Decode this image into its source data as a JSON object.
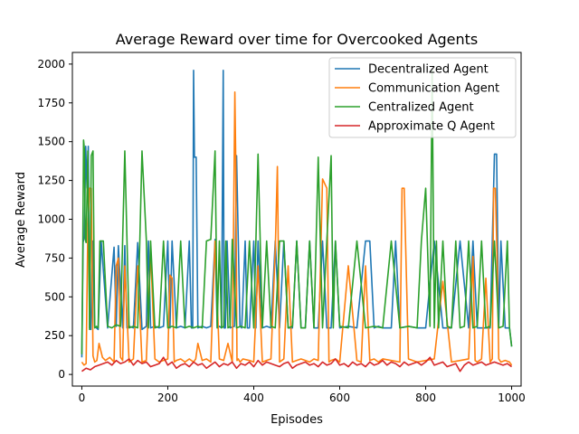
{
  "chart_data": {
    "type": "line",
    "title": "Average Reward over time for Overcooked Agents",
    "xlabel": "Episodes",
    "ylabel": "Average Reward",
    "xlim": [
      -22,
      1022
    ],
    "ylim": [
      -75,
      2075
    ],
    "xticks": [
      0,
      200,
      400,
      600,
      800,
      1000
    ],
    "xtick_labels": [
      "0",
      "200",
      "400",
      "600",
      "800",
      "1000"
    ],
    "yticks": [
      0,
      250,
      500,
      750,
      1000,
      1250,
      1500,
      1750,
      2000
    ],
    "ytick_labels": [
      "0",
      "250",
      "500",
      "750",
      "1000",
      "1250",
      "1500",
      "1750",
      "2000"
    ],
    "grid": false,
    "legend_position": "top-right",
    "series": [
      {
        "name": "Decentralized Agent",
        "color": "#1f77b4",
        "x": [
          0,
          3,
          6,
          9,
          12,
          15,
          18,
          21,
          25,
          30,
          38,
          45,
          60,
          75,
          80,
          85,
          95,
          100,
          105,
          110,
          120,
          130,
          140,
          150,
          155,
          160,
          170,
          180,
          190,
          200,
          205,
          210,
          220,
          230,
          240,
          250,
          255,
          258,
          260,
          262,
          266,
          270,
          280,
          290,
          300,
          310,
          315,
          320,
          325,
          329,
          331,
          334,
          338,
          345,
          355,
          360,
          364,
          368,
          372,
          380,
          385,
          390,
          400,
          405,
          410,
          420,
          430,
          440,
          450,
          460,
          470,
          480,
          490,
          500,
          510,
          520,
          530,
          540,
          550,
          560,
          570,
          580,
          590,
          600,
          620,
          640,
          660,
          670,
          680,
          690,
          700,
          720,
          730,
          740,
          760,
          780,
          800,
          820,
          840,
          860,
          880,
          900,
          910,
          920,
          940,
          950,
          955,
          960,
          965,
          970,
          975,
          985,
          995,
          1000
        ],
        "y": [
          110,
          850,
          900,
          1470,
          1200,
          1470,
          300,
          290,
          860,
          310,
          290,
          860,
          300,
          820,
          310,
          830,
          300,
          830,
          300,
          310,
          300,
          850,
          290,
          310,
          860,
          300,
          310,
          300,
          310,
          860,
          300,
          860,
          300,
          310,
          300,
          860,
          300,
          300,
          1960,
          1400,
          1400,
          300,
          310,
          300,
          310,
          870,
          300,
          310,
          300,
          1960,
          300,
          300,
          860,
          300,
          310,
          1410,
          860,
          310,
          300,
          860,
          300,
          300,
          860,
          300,
          860,
          300,
          310,
          300,
          860,
          300,
          860,
          300,
          300,
          860,
          300,
          300,
          860,
          300,
          300,
          860,
          300,
          300,
          860,
          300,
          310,
          300,
          860,
          860,
          300,
          310,
          300,
          300,
          860,
          300,
          310,
          300,
          300,
          860,
          300,
          300,
          860,
          300,
          860,
          300,
          300,
          300,
          860,
          1420,
          1420,
          300,
          860,
          300,
          300,
          180
        ]
      },
      {
        "name": "Communication Agent",
        "color": "#ff7f0e",
        "x": [
          0,
          5,
          10,
          14,
          18,
          22,
          26,
          30,
          35,
          40,
          48,
          55,
          65,
          75,
          80,
          85,
          90,
          95,
          100,
          110,
          120,
          130,
          140,
          150,
          160,
          170,
          180,
          190,
          200,
          205,
          210,
          215,
          220,
          230,
          240,
          250,
          260,
          265,
          270,
          280,
          290,
          300,
          310,
          320,
          330,
          340,
          350,
          356,
          358,
          361,
          364,
          368,
          375,
          390,
          400,
          410,
          420,
          430,
          440,
          450,
          455,
          460,
          465,
          470,
          480,
          490,
          500,
          510,
          520,
          530,
          540,
          550,
          560,
          570,
          575,
          580,
          590,
          600,
          620,
          640,
          650,
          660,
          670,
          680,
          690,
          700,
          720,
          740,
          745,
          750,
          760,
          780,
          800,
          820,
          840,
          860,
          880,
          900,
          910,
          915,
          920,
          930,
          940,
          950,
          955,
          958,
          962,
          966,
          970,
          975,
          985,
          995,
          1000
        ],
        "y": [
          80,
          60,
          70,
          940,
          1200,
          1200,
          120,
          80,
          90,
          200,
          110,
          90,
          110,
          80,
          700,
          750,
          110,
          90,
          700,
          80,
          100,
          700,
          80,
          90,
          800,
          100,
          80,
          90,
          100,
          640,
          620,
          80,
          90,
          100,
          80,
          100,
          80,
          100,
          200,
          90,
          100,
          80,
          860,
          100,
          90,
          200,
          80,
          1820,
          1400,
          90,
          100,
          80,
          100,
          90,
          80,
          700,
          80,
          90,
          100,
          800,
          1340,
          80,
          90,
          100,
          700,
          80,
          90,
          100,
          90,
          80,
          100,
          90,
          1260,
          1200,
          80,
          90,
          100,
          80,
          700,
          90,
          80,
          700,
          90,
          100,
          80,
          100,
          90,
          80,
          1200,
          1200,
          100,
          80,
          90,
          100,
          600,
          80,
          90,
          100,
          760,
          90,
          80,
          100,
          620,
          80,
          100,
          1200,
          1200,
          780,
          100,
          80,
          90,
          80,
          60
        ]
      },
      {
        "name": "Centralized Agent",
        "color": "#2ca02c",
        "x": [
          0,
          2,
          4,
          6,
          8,
          10,
          14,
          18,
          22,
          26,
          30,
          34,
          38,
          42,
          50,
          60,
          70,
          80,
          90,
          100,
          110,
          120,
          130,
          140,
          150,
          155,
          160,
          170,
          180,
          190,
          200,
          210,
          220,
          230,
          240,
          250,
          260,
          270,
          280,
          290,
          300,
          310,
          315,
          320,
          325,
          330,
          335,
          340,
          345,
          350,
          360,
          370,
          380,
          390,
          400,
          410,
          420,
          430,
          440,
          450,
          460,
          470,
          480,
          490,
          500,
          510,
          520,
          530,
          540,
          550,
          560,
          570,
          580,
          585,
          590,
          600,
          620,
          640,
          660,
          680,
          700,
          720,
          740,
          760,
          780,
          790,
          800,
          810,
          815,
          820,
          825,
          830,
          840,
          850,
          860,
          870,
          880,
          890,
          900,
          910,
          920,
          930,
          940,
          950,
          960,
          970,
          980,
          990,
          995,
          1000
        ],
        "y": [
          130,
          700,
          1510,
          1450,
          870,
          850,
          1440,
          290,
          1410,
          1440,
          300,
          310,
          300,
          860,
          860,
          310,
          300,
          320,
          310,
          1440,
          300,
          310,
          300,
          1440,
          870,
          300,
          860,
          300,
          310,
          860,
          300,
          310,
          300,
          860,
          300,
          310,
          300,
          310,
          300,
          860,
          870,
          1440,
          300,
          860,
          300,
          310,
          860,
          300,
          310,
          870,
          300,
          310,
          300,
          860,
          300,
          1420,
          300,
          860,
          310,
          300,
          860,
          860,
          300,
          310,
          860,
          300,
          300,
          860,
          300,
          1400,
          300,
          860,
          1410,
          300,
          860,
          310,
          300,
          860,
          300,
          310,
          300,
          860,
          300,
          310,
          300,
          860,
          1200,
          310,
          1960,
          300,
          860,
          300,
          860,
          310,
          300,
          860,
          300,
          310,
          860,
          300,
          310,
          860,
          300,
          310,
          860,
          300,
          310,
          860,
          300,
          180
        ]
      },
      {
        "name": "Approximate Q Agent",
        "color": "#d62728",
        "x": [
          0,
          10,
          20,
          30,
          40,
          50,
          60,
          70,
          80,
          90,
          100,
          110,
          120,
          130,
          140,
          150,
          160,
          170,
          180,
          190,
          200,
          210,
          220,
          230,
          240,
          250,
          260,
          270,
          280,
          290,
          300,
          310,
          320,
          330,
          340,
          350,
          360,
          370,
          380,
          390,
          400,
          410,
          420,
          430,
          440,
          450,
          460,
          470,
          480,
          490,
          500,
          510,
          520,
          530,
          540,
          550,
          560,
          570,
          580,
          590,
          600,
          610,
          620,
          630,
          640,
          650,
          660,
          670,
          680,
          690,
          700,
          710,
          720,
          730,
          740,
          750,
          760,
          770,
          780,
          790,
          800,
          810,
          820,
          830,
          840,
          850,
          860,
          870,
          880,
          890,
          900,
          910,
          920,
          930,
          940,
          950,
          960,
          970,
          980,
          990,
          1000
        ],
        "y": [
          20,
          40,
          30,
          50,
          60,
          70,
          80,
          60,
          90,
          70,
          80,
          100,
          60,
          90,
          70,
          80,
          50,
          60,
          70,
          110,
          60,
          80,
          40,
          60,
          70,
          50,
          80,
          60,
          70,
          40,
          60,
          80,
          50,
          70,
          60,
          80,
          40,
          70,
          60,
          80,
          50,
          90,
          60,
          80,
          70,
          60,
          50,
          70,
          80,
          40,
          60,
          70,
          80,
          60,
          70,
          50,
          80,
          60,
          70,
          100,
          60,
          70,
          50,
          80,
          60,
          70,
          50,
          80,
          60,
          70,
          90,
          60,
          80,
          70,
          50,
          80,
          60,
          70,
          80,
          60,
          80,
          110,
          60,
          70,
          80,
          50,
          60,
          70,
          20,
          60,
          80,
          60,
          70,
          80,
          60,
          70,
          80,
          70,
          60,
          70,
          50
        ]
      }
    ]
  }
}
